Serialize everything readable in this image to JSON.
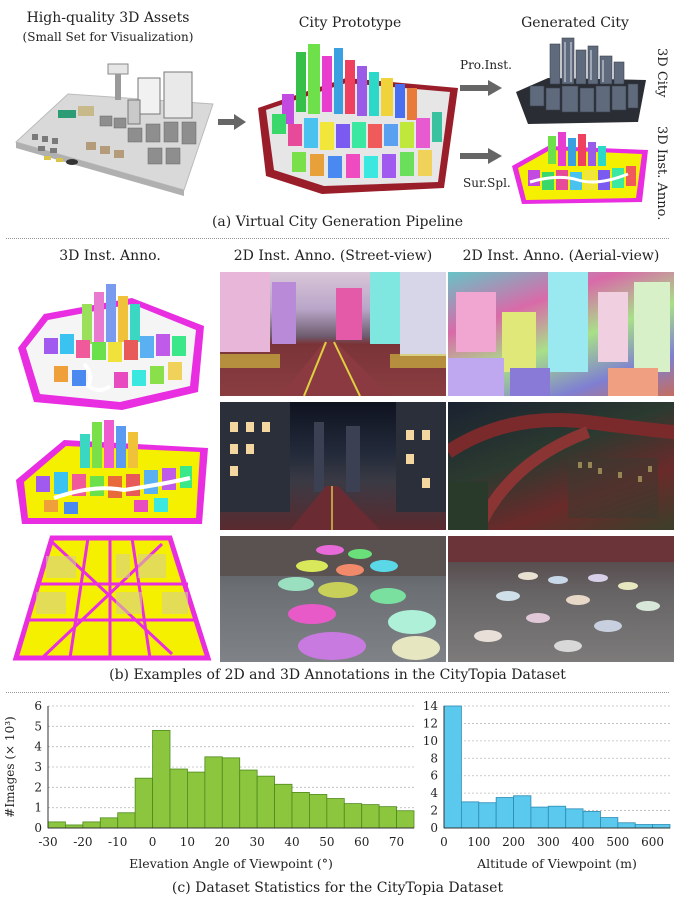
{
  "top": {
    "assets_title": "High-quality 3D Assets",
    "assets_subtitle": "(Small Set for Visualization)",
    "prototype_title": "City Prototype",
    "generated_title": "Generated City",
    "pro_inst_label": "Pro.Inst.",
    "sur_spl_label": "Sur.Spl.",
    "city_3d_label": "3D City",
    "inst_anno_3d_label": "3D Inst. Anno.",
    "caption": "(a) Virtual City Generation Pipeline"
  },
  "middle": {
    "col1_header": "3D Inst. Anno.",
    "col2_header": "2D Inst. Anno. (Street-view)",
    "col3_header": "2D Inst. Anno. (Aerial-view)",
    "caption": "(b) Examples of 2D and 3D Annotations in the CityTopia Dataset"
  },
  "bottom": {
    "caption": "(c) Dataset Statistics for the CityTopia Dataset"
  },
  "colors": {
    "elev_bar": "#8cc63f",
    "elev_edge": "#4e8a1c",
    "alt_bar": "#5bc8ee",
    "alt_edge": "#2a8cb5",
    "magenta": "#e82ee0",
    "yellow": "#f5f000"
  },
  "chart_data": [
    {
      "type": "bar",
      "ylabel": "#Images (× 10³)",
      "xlabel": "Elevation Angle of Viewpoint (°)",
      "x_ticks": [
        "-30",
        "-20",
        "-10",
        "0",
        "10",
        "20",
        "30",
        "40",
        "50",
        "60",
        "70"
      ],
      "y_ticks": [
        "0",
        "1",
        "2",
        "3",
        "4",
        "5",
        "6"
      ],
      "ylim": [
        0,
        6
      ],
      "xlim": [
        -30,
        75
      ],
      "bin_width": 5,
      "bins": [
        -30,
        -25,
        -20,
        -15,
        -10,
        -5,
        0,
        5,
        10,
        15,
        20,
        25,
        30,
        35,
        40,
        45,
        50,
        55,
        60,
        65,
        70
      ],
      "values": [
        0.3,
        0.15,
        0.3,
        0.5,
        0.75,
        2.45,
        4.8,
        2.9,
        2.75,
        3.5,
        3.45,
        2.85,
        2.55,
        2.15,
        1.75,
        1.65,
        1.45,
        1.2,
        1.15,
        1.05,
        0.85
      ],
      "grid": "horizontal"
    },
    {
      "type": "bar",
      "xlabel": "Altitude of Viewpoint (m)",
      "x_ticks": [
        "0",
        "100",
        "200",
        "300",
        "400",
        "500",
        "600"
      ],
      "y_ticks": [
        "0",
        "2",
        "4",
        "6",
        "8",
        "10",
        "12",
        "14"
      ],
      "ylim": [
        0,
        14
      ],
      "xlim": [
        0,
        650
      ],
      "bin_width": 50,
      "bins": [
        0,
        50,
        100,
        150,
        200,
        250,
        300,
        350,
        400,
        450,
        500,
        550,
        600
      ],
      "values": [
        14.2,
        3.0,
        2.9,
        3.5,
        3.7,
        2.4,
        2.5,
        2.2,
        1.9,
        1.2,
        0.6,
        0.4,
        0.4
      ],
      "grid": "horizontal"
    }
  ]
}
